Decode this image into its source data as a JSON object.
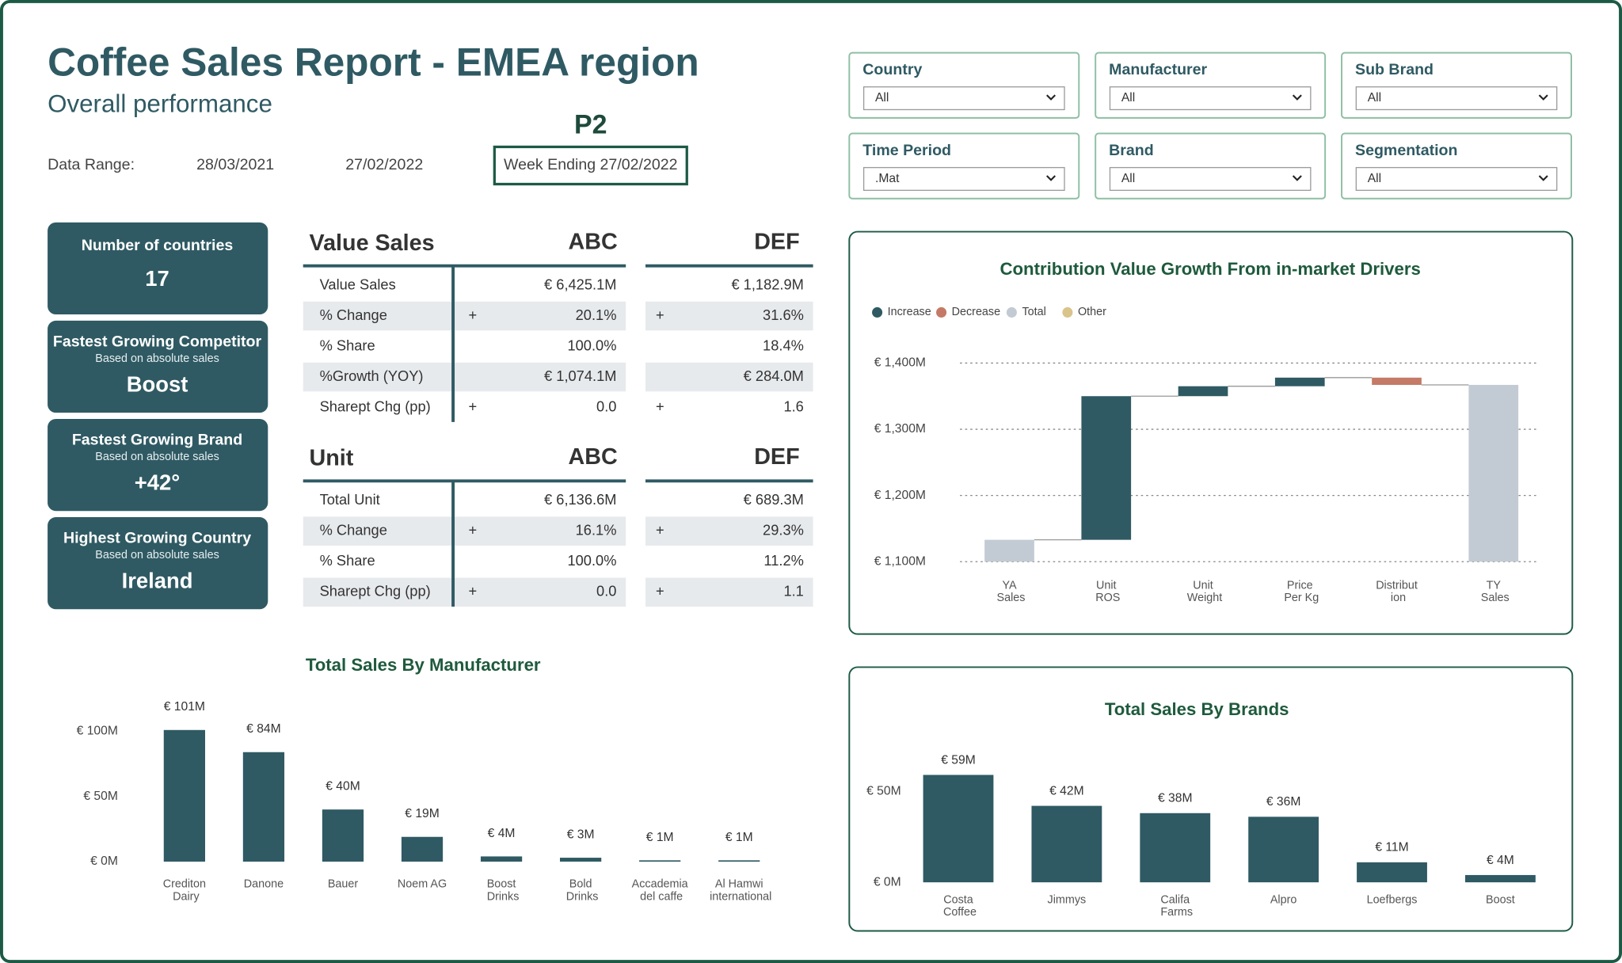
{
  "header": {
    "title": "Coffee Sales Report - EMEA region",
    "subtitle": "Overall performance",
    "period": "P2",
    "data_range_label": "Data Range:",
    "start_date": "28/03/2021",
    "end_date": "27/02/2022",
    "week_ending": "Week Ending 27/02/2022"
  },
  "filters": [
    {
      "label": "Country",
      "value": "All"
    },
    {
      "label": "Manufacturer",
      "value": "All"
    },
    {
      "label": "Sub Brand",
      "value": "All"
    },
    {
      "label": "Time Period",
      "value": ".Mat"
    },
    {
      "label": "Brand",
      "value": "All"
    },
    {
      "label": "Segmentation",
      "value": "All"
    }
  ],
  "kpis": [
    {
      "title": "Number of countries",
      "value": "17"
    },
    {
      "title": "Fastest Growing Competitor",
      "note": "Based on absolute sales",
      "value": "Boost"
    },
    {
      "title": "Fastest Growing Brand",
      "note": "Based on absolute sales",
      "value": "+42°"
    },
    {
      "title": "Highest Growing Country",
      "note": "Based on absolute sales",
      "value": "Ireland"
    }
  ],
  "tables": [
    {
      "title": "Value Sales",
      "columns": [
        "ABC",
        "DEF"
      ],
      "rows": [
        {
          "label": "Value Sales",
          "cells": [
            {
              "value": "€ 6,425.1M"
            },
            {
              "value": "€ 1,182.9M"
            }
          ]
        },
        {
          "label": "% Change",
          "cells": [
            {
              "sign": "+",
              "value": "20.1%"
            },
            {
              "sign": "+",
              "value": "31.6%"
            }
          ]
        },
        {
          "label": "% Share",
          "cells": [
            {
              "value": "100.0%"
            },
            {
              "value": "18.4%"
            }
          ]
        },
        {
          "label": "%Growth (YOY)",
          "cells": [
            {
              "value": "€ 1,074.1M"
            },
            {
              "value": "€ 284.0M"
            }
          ]
        },
        {
          "label": "Sharept Chg (pp)",
          "cells": [
            {
              "sign": "+",
              "value": "0.0"
            },
            {
              "sign": "+",
              "value": "1.6"
            }
          ]
        }
      ]
    },
    {
      "title": "Unit",
      "columns": [
        "ABC",
        "DEF"
      ],
      "rows": [
        {
          "label": "Total Unit",
          "cells": [
            {
              "value": "€ 6,136.6M"
            },
            {
              "value": "€ 689.3M"
            }
          ]
        },
        {
          "label": "% Change",
          "cells": [
            {
              "sign": "+",
              "value": "16.1%"
            },
            {
              "sign": "+",
              "value": "29.3%"
            }
          ]
        },
        {
          "label": "% Share",
          "cells": [
            {
              "value": "100.0%"
            },
            {
              "value": "11.2%"
            }
          ]
        },
        {
          "label": "Sharept Chg (pp)",
          "cells": [
            {
              "sign": "+",
              "value": "0.0"
            },
            {
              "sign": "+",
              "value": "1.1"
            }
          ]
        }
      ]
    }
  ],
  "chart_data": [
    {
      "type": "waterfall",
      "title": "Contribution Value Growth From in-market Drivers",
      "legend": [
        {
          "name": "Increase",
          "color": "#2f5a63"
        },
        {
          "name": "Decrease",
          "color": "#c47a66"
        },
        {
          "name": "Total",
          "color": "#c2cbd3"
        },
        {
          "name": "Other",
          "color": "#d9c48c"
        }
      ],
      "categories": [
        "YA Sales",
        "Unit ROS",
        "Unit Weight",
        "Price Per Kg",
        "Distribut ion",
        "TY Sales"
      ],
      "values": [
        1133,
        217,
        15,
        13,
        -11,
        1367
      ],
      "bar_kinds": [
        "Total",
        "Increase",
        "Increase",
        "Increase",
        "Decrease",
        "Total"
      ],
      "ylim": [
        1100,
        1400
      ],
      "yticks": [
        {
          "value": 1100,
          "label": "€ 1,100M"
        },
        {
          "value": 1200,
          "label": "€ 1,200M"
        },
        {
          "value": 1300,
          "label": "€ 1,300M"
        },
        {
          "value": 1400,
          "label": "€ 1,400M"
        }
      ],
      "grid": true
    },
    {
      "type": "bar",
      "title": "Total Sales By Manufacturer",
      "categories": [
        "Crediton Dairy",
        "Danone",
        "Bauer",
        "Noem AG",
        "Boost Drinks",
        "Bold Drinks",
        "Accademia del caffe",
        "Al Hamwi international"
      ],
      "values": [
        101,
        84,
        40,
        19,
        4,
        3,
        1,
        1
      ],
      "value_labels": [
        "€ 101M",
        "€ 84M",
        "€ 40M",
        "€ 19M",
        "€ 4M",
        "€ 3M",
        "€ 1M",
        "€ 1M"
      ],
      "color": "#2f5a63",
      "ylim": [
        0,
        100
      ],
      "yticks": [
        {
          "value": 0,
          "label": "€ 0M"
        },
        {
          "value": 50,
          "label": "€ 50M"
        },
        {
          "value": 100,
          "label": "€ 100M"
        }
      ],
      "grid": false
    },
    {
      "type": "bar",
      "title": "Total Sales By Brands",
      "categories": [
        "Costa Coffee",
        "Jimmys",
        "Califa Farms",
        "Alpro",
        "Loefbergs",
        "Boost"
      ],
      "values": [
        59,
        42,
        38,
        36,
        11,
        4
      ],
      "value_labels": [
        "€ 59M",
        "€ 42M",
        "€ 38M",
        "€ 36M",
        "€ 11M",
        "€ 4M"
      ],
      "color": "#2f5a63",
      "ylim": [
        0,
        50
      ],
      "yticks": [
        {
          "value": 0,
          "label": "€ 0M"
        },
        {
          "value": 50,
          "label": "€ 50M"
        }
      ],
      "grid": false
    }
  ]
}
